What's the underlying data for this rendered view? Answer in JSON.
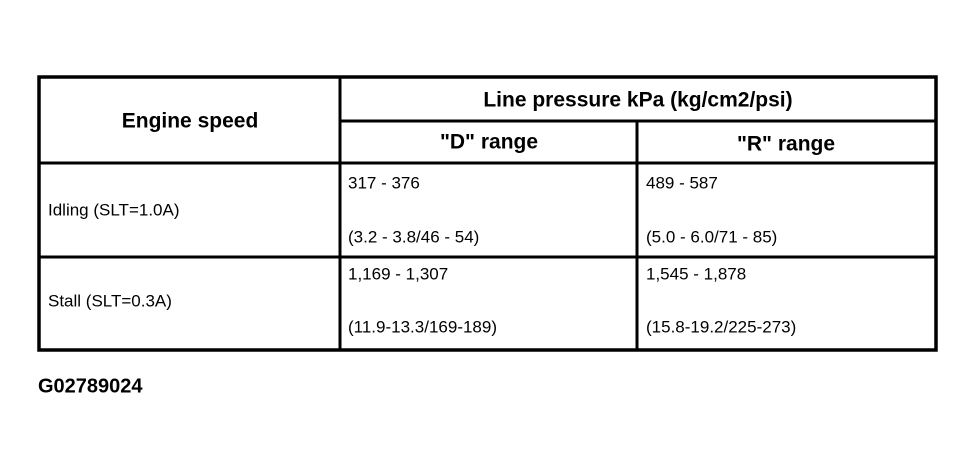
{
  "table": {
    "header": {
      "engine_speed": "Engine speed",
      "line_pressure": "Line pressure kPa (kg/cm2/psi)",
      "ranges": [
        "\"D\" range",
        "\"R\" range"
      ]
    },
    "rows": [
      {
        "label": "Idling (SLT=1.0A)",
        "cells": [
          {
            "kpa": "317 - 376",
            "other": "(3.2 - 3.8/46 - 54)"
          },
          {
            "kpa": "489 - 587",
            "other": "(5.0 - 6.0/71 - 85)"
          }
        ]
      },
      {
        "label": "Stall (SLT=0.3A)",
        "cells": [
          {
            "kpa": "1,169 - 1,307",
            "other": "(11.9-13.3/169-189)"
          },
          {
            "kpa": "1,545 - 1,878",
            "other": "(15.8-19.2/225-273)"
          }
        ]
      }
    ]
  },
  "figure_id": "G02789024"
}
